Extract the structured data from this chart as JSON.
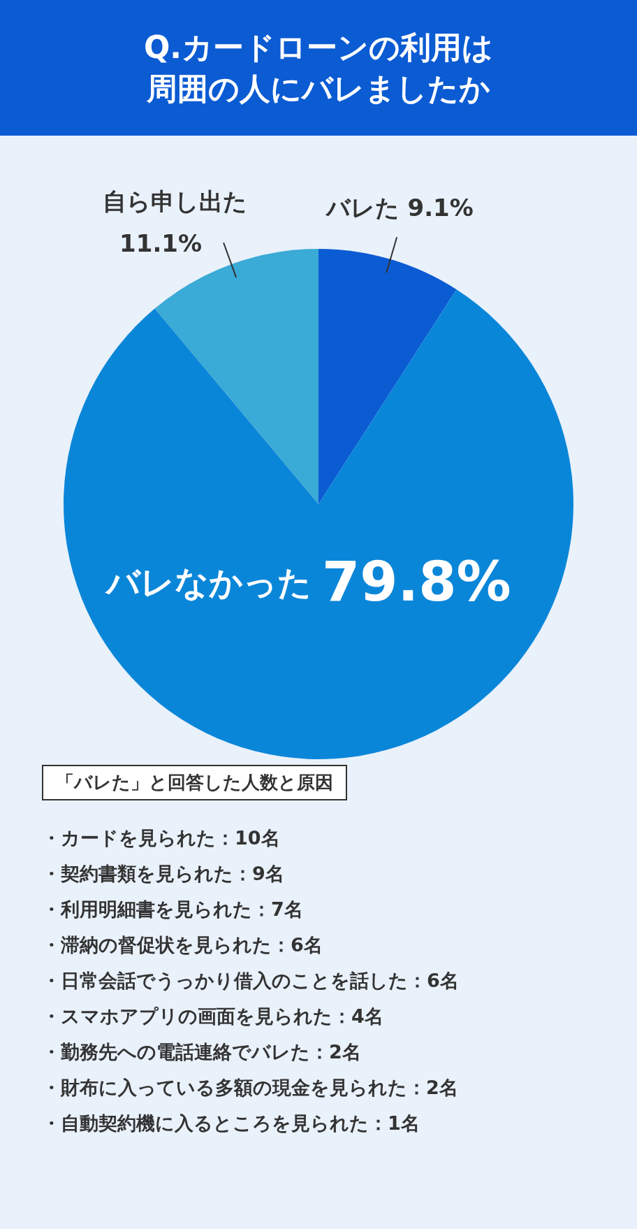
{
  "chart_data": {
    "type": "pie",
    "title": "Q.カードローンの利用は周囲の人にバレましたか",
    "categories": [
      "バレた",
      "バレなかった",
      "自ら申し出た"
    ],
    "values": [
      9.1,
      79.8,
      11.1
    ],
    "value_labels": [
      "9.1%",
      "79.8%",
      "11.1%"
    ],
    "colors": [
      "#0b5bd3",
      "#0a86d9",
      "#3aaad6"
    ],
    "annotations": [
      "「バレた」と回答した人数と原因",
      "・カードを見られた：10名",
      "・契約書類を見られた：9名",
      "・利用明細書を見られた：7名",
      "・滞納の督促状を見られた：6名",
      "・日常会話でうっかり借入のことを話した：6名",
      "・スマホアプリの画面を見られた：4名",
      "・勤務先への電話連絡でバレた：2名",
      "・財布に入っている多額の現金を見られた：2名",
      "・自動契約機に入るところを見られた：1名"
    ]
  }
}
